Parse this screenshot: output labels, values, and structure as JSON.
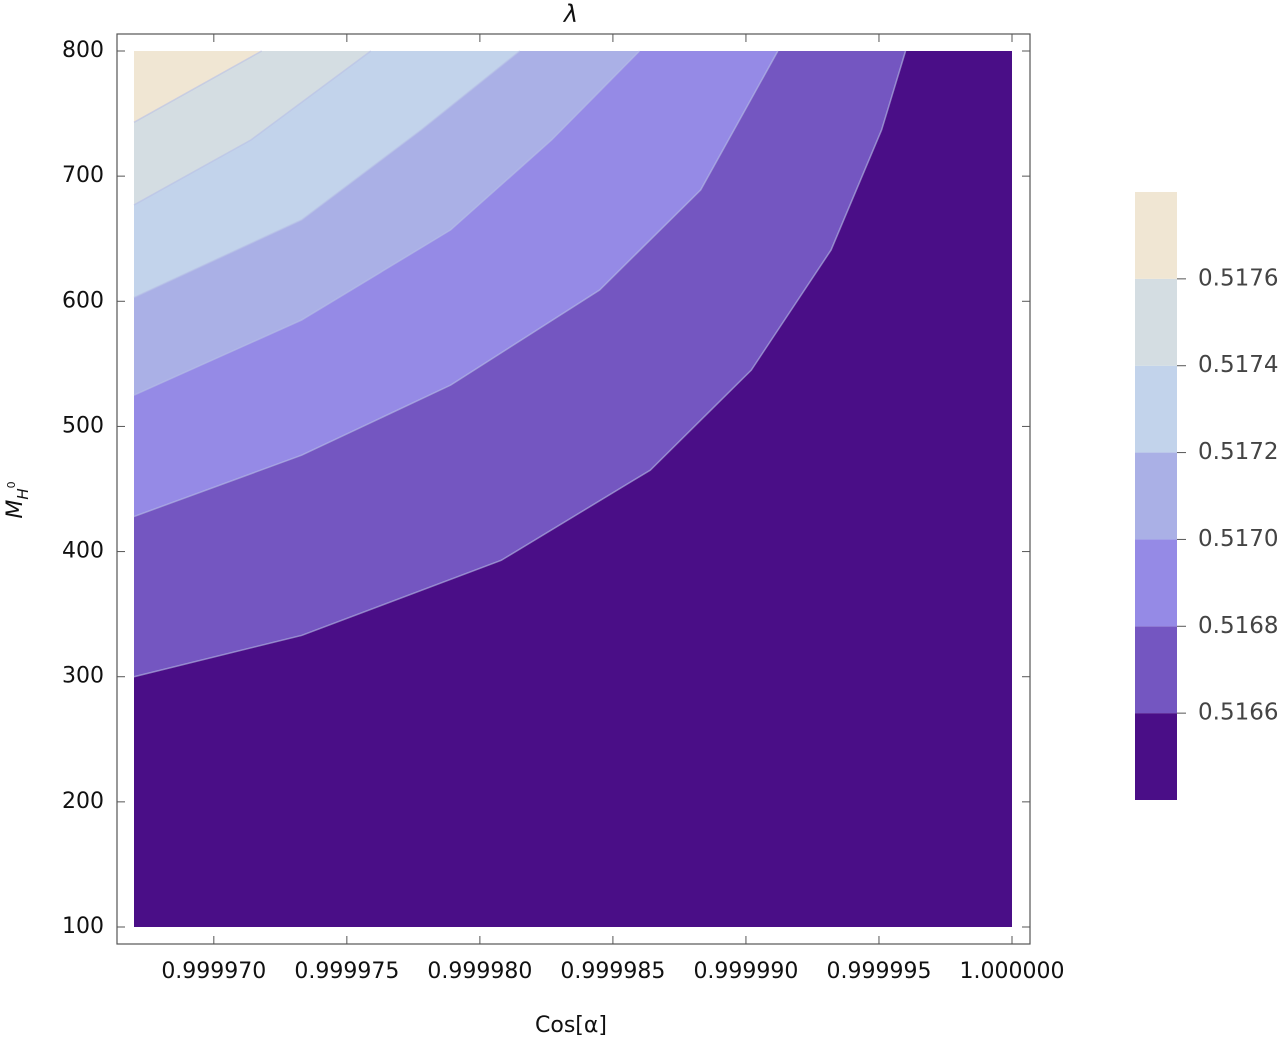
{
  "chart_data": {
    "type": "contour",
    "title": "λ",
    "xlabel": "Cos[α]",
    "ylabel": "M",
    "ylabel_sub": "H",
    "ylabel_sup": "0",
    "xlim": [
      0.999967,
      1.0
    ],
    "ylim": [
      100,
      800
    ],
    "xticks": [
      {
        "value": 0.99997,
        "label": "0.999970"
      },
      {
        "value": 0.999975,
        "label": "0.999975"
      },
      {
        "value": 0.99998,
        "label": "0.999980"
      },
      {
        "value": 0.999985,
        "label": "0.999985"
      },
      {
        "value": 0.99999,
        "label": "0.999990"
      },
      {
        "value": 0.999995,
        "label": "0.999995"
      },
      {
        "value": 1.0,
        "label": "1.000000"
      }
    ],
    "yticks": [
      100,
      200,
      300,
      400,
      500,
      600,
      700,
      800
    ],
    "contours": [
      {
        "level": 0.5166,
        "x": [
          0.999967,
          0.9999733,
          0.9999808,
          0.9999864,
          0.9999902,
          0.9999932,
          0.9999951,
          0.999996
        ],
        "y": [
          300,
          333,
          393,
          465,
          545,
          641,
          737,
          800
        ]
      },
      {
        "level": 0.5168,
        "x": [
          0.999967,
          0.9999733,
          0.9999789,
          0.9999845,
          0.9999883,
          0.9999912
        ],
        "y": [
          428,
          477,
          533,
          609,
          689,
          800
        ]
      },
      {
        "level": 0.517,
        "x": [
          0.999967,
          0.9999733,
          0.9999789,
          0.9999827,
          0.999986
        ],
        "y": [
          525,
          585,
          657,
          729,
          800
        ]
      },
      {
        "level": 0.5172,
        "x": [
          0.999967,
          0.9999733,
          0.9999778,
          0.9999815
        ],
        "y": [
          603,
          665,
          737,
          800
        ]
      },
      {
        "level": 0.5174,
        "x": [
          0.999967,
          0.9999714,
          0.9999759
        ],
        "y": [
          677,
          729,
          800
        ]
      },
      {
        "level": 0.5176,
        "x": [
          0.999967,
          0.9999718
        ],
        "y": [
          743,
          800
        ]
      }
    ],
    "colorbar": {
      "lim": [
        0.5164,
        0.5178
      ],
      "colors": [
        "#4a0e87",
        "#7456c1",
        "#958ae6",
        "#aab0e6",
        "#c2d3eb",
        "#d4dde2",
        "#f0e6d3"
      ],
      "ticks": [
        {
          "value": 0.5166,
          "label": "0.5166"
        },
        {
          "value": 0.5168,
          "label": "0.5168"
        },
        {
          "value": 0.517,
          "label": "0.5170"
        },
        {
          "value": 0.5172,
          "label": "0.5172"
        },
        {
          "value": 0.5174,
          "label": "0.5174"
        },
        {
          "value": 0.5176,
          "label": "0.5176"
        }
      ]
    }
  }
}
